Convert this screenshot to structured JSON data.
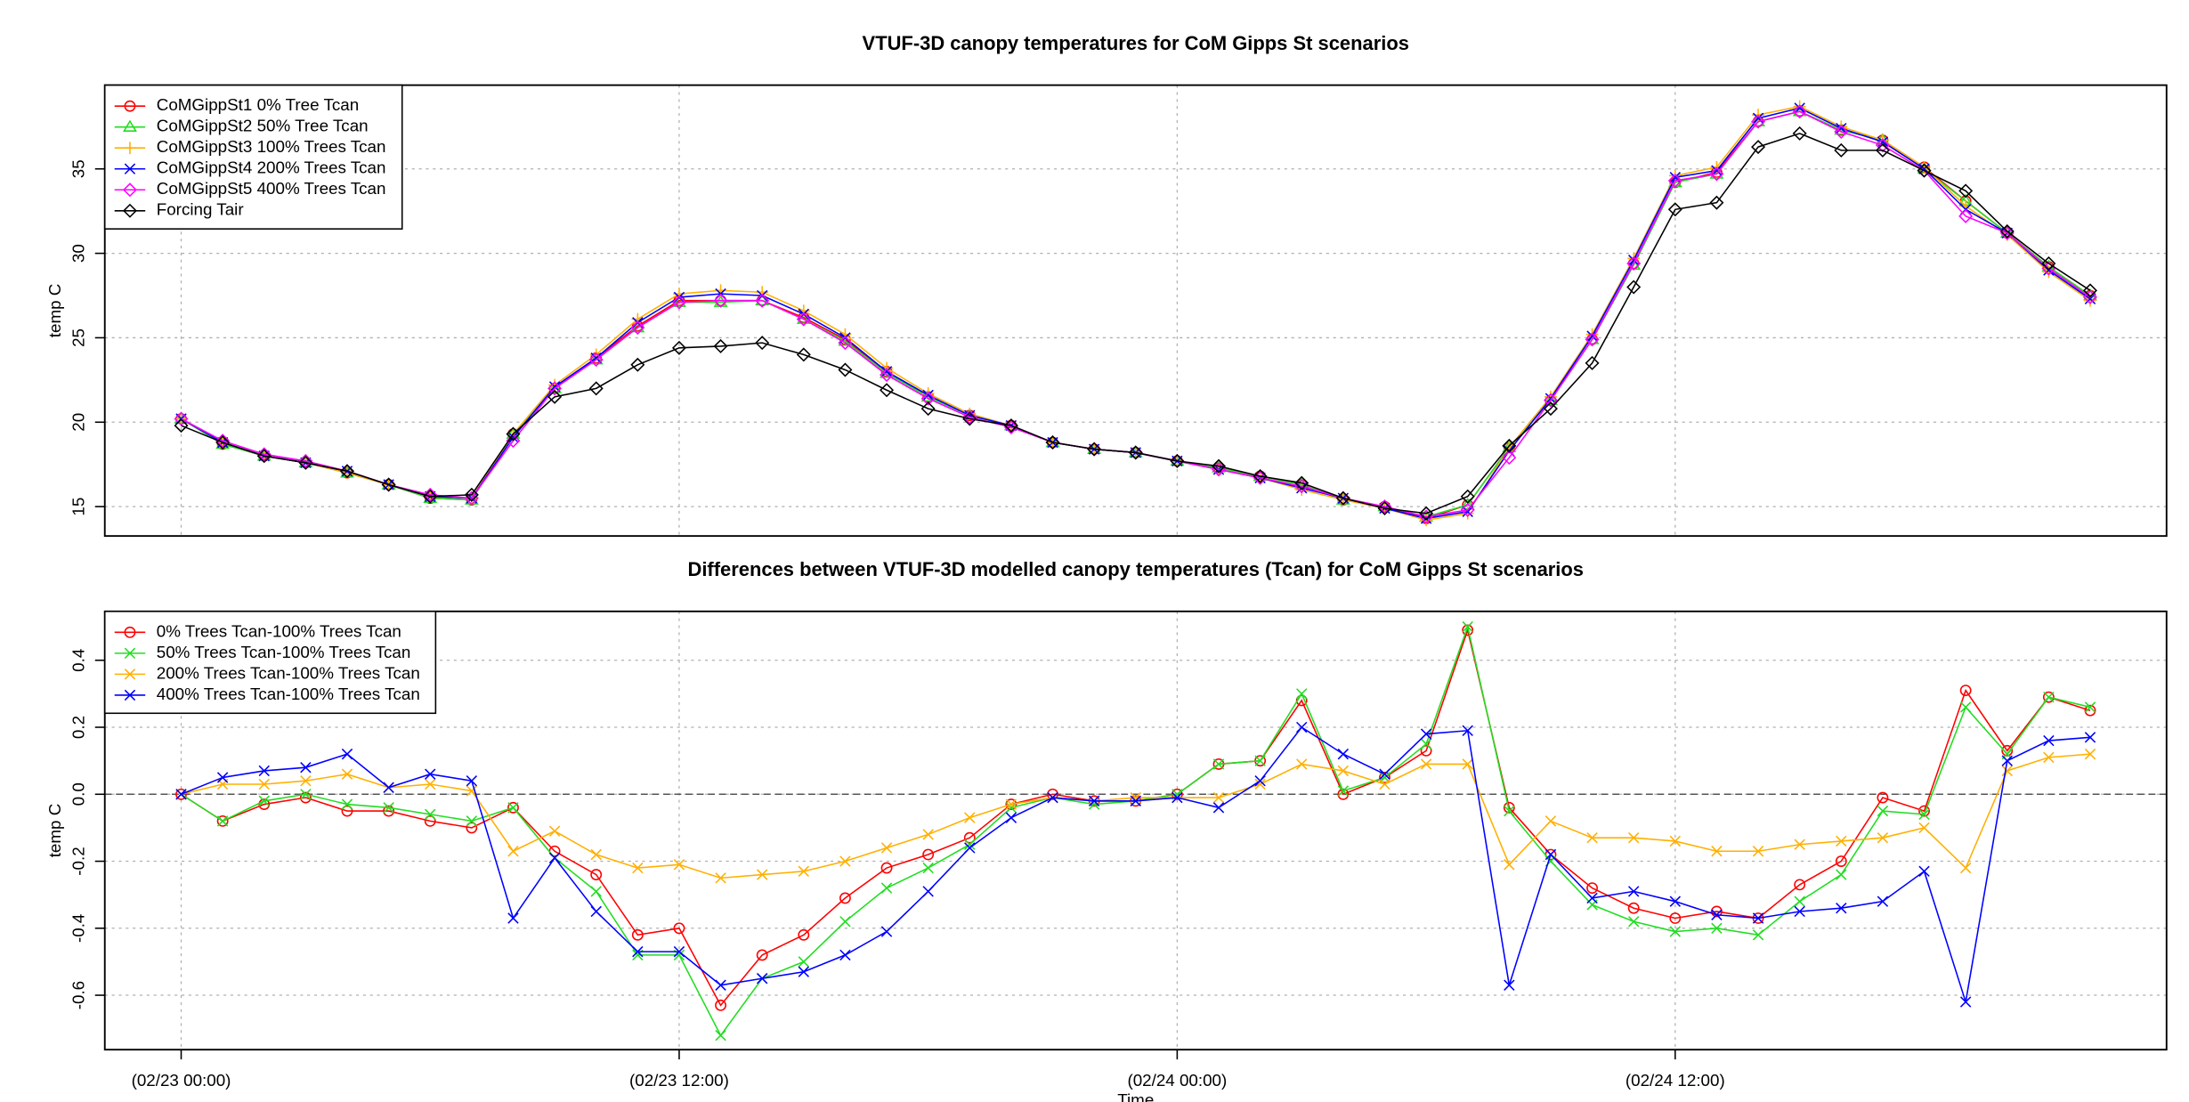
{
  "chart_data": [
    {
      "type": "line",
      "title": "VTUF-3D canopy temperatures for CoM Gipps St scenarios",
      "ylabel": "temp C",
      "x": [
        "02/23 00:00",
        "02/23 01:00",
        "02/23 02:00",
        "02/23 03:00",
        "02/23 04:00",
        "02/23 05:00",
        "02/23 06:00",
        "02/23 07:00",
        "02/23 08:00",
        "02/23 09:00",
        "02/23 10:00",
        "02/23 11:00",
        "02/23 12:00",
        "02/23 13:00",
        "02/23 14:00",
        "02/23 15:00",
        "02/23 16:00",
        "02/23 17:00",
        "02/23 18:00",
        "02/23 19:00",
        "02/23 20:00",
        "02/23 21:00",
        "02/23 22:00",
        "02/23 23:00",
        "02/24 00:00",
        "02/24 01:00",
        "02/24 02:00",
        "02/24 03:00",
        "02/24 04:00",
        "02/24 05:00",
        "02/24 06:00",
        "02/24 07:00",
        "02/24 08:00",
        "02/24 09:00",
        "02/24 10:00",
        "02/24 11:00",
        "02/24 12:00",
        "02/24 13:00",
        "02/24 14:00",
        "02/24 15:00",
        "02/24 16:00",
        "02/24 17:00",
        "02/24 18:00",
        "02/24 19:00",
        "02/24 20:00",
        "02/24 21:00",
        "02/24 22:00"
      ],
      "xticks": [
        "02/23 00:00",
        "02/23 12:00",
        "02/24 00:00",
        "02/24 12:00"
      ],
      "ylim": [
        13.26,
        39.96
      ],
      "yticks": [
        15,
        20,
        25,
        30,
        35
      ],
      "grid": true,
      "legend": "top-left",
      "series": [
        {
          "name": "CoMGippSt1 0% Tree Tcan",
          "color": "#ff0000",
          "marker": "circle",
          "values": [
            20.2,
            18.7,
            18.0,
            17.6,
            17.0,
            16.3,
            15.5,
            15.4,
            19.3,
            22.0,
            23.8,
            25.7,
            27.2,
            27.2,
            27.2,
            26.2,
            24.9,
            23.0,
            21.5,
            20.4,
            19.8,
            18.8,
            18.4,
            18.2,
            17.7,
            17.3,
            16.8,
            16.3,
            15.4,
            15.0,
            14.3,
            15.1,
            18.5,
            21.3,
            24.9,
            29.4,
            34.2,
            34.8,
            37.8,
            38.4,
            37.3,
            36.7,
            35.1,
            33.1,
            31.2,
            29.2,
            27.5
          ]
        },
        {
          "name": "CoMGippSt2 50% Tree Tcan",
          "color": "#22dd22",
          "marker": "triangle",
          "values": [
            20.2,
            18.7,
            18.0,
            17.6,
            17.0,
            16.3,
            15.5,
            15.4,
            19.3,
            22.0,
            23.7,
            25.6,
            27.1,
            27.1,
            27.2,
            26.1,
            24.8,
            22.9,
            21.5,
            20.4,
            19.8,
            18.8,
            18.4,
            18.2,
            17.7,
            17.3,
            16.8,
            16.3,
            15.4,
            15.0,
            14.4,
            15.1,
            18.5,
            21.3,
            24.9,
            29.3,
            34.2,
            34.7,
            37.8,
            38.4,
            37.3,
            36.7,
            35.0,
            33.1,
            31.2,
            29.2,
            27.5
          ]
        },
        {
          "name": "CoMGippSt3 100% Trees Tcan",
          "color": "#ffb000",
          "marker": "plus",
          "values": [
            20.2,
            18.8,
            18.0,
            17.6,
            17.0,
            16.3,
            15.6,
            15.5,
            19.3,
            22.2,
            24.0,
            26.1,
            27.6,
            27.8,
            27.7,
            26.6,
            25.2,
            23.2,
            21.7,
            20.5,
            19.8,
            18.8,
            18.4,
            18.2,
            17.7,
            17.2,
            16.7,
            16.0,
            15.4,
            14.9,
            14.2,
            14.6,
            18.5,
            21.5,
            25.2,
            29.7,
            34.6,
            35.1,
            38.2,
            38.7,
            37.5,
            36.7,
            35.1,
            32.8,
            31.1,
            28.9,
            27.2
          ]
        },
        {
          "name": "CoMGippSt4 200% Trees Tcan",
          "color": "#0000ff",
          "marker": "x",
          "values": [
            20.2,
            18.8,
            18.0,
            17.6,
            17.1,
            16.3,
            15.6,
            15.5,
            19.1,
            22.1,
            23.8,
            25.9,
            27.4,
            27.6,
            27.5,
            26.4,
            25.0,
            23.0,
            21.6,
            20.4,
            19.8,
            18.8,
            18.4,
            18.2,
            17.7,
            17.2,
            16.7,
            16.1,
            15.5,
            14.9,
            14.3,
            14.7,
            18.3,
            21.4,
            25.1,
            29.6,
            34.5,
            34.9,
            38.0,
            38.6,
            37.4,
            36.6,
            35.0,
            32.6,
            31.2,
            29.0,
            27.3
          ]
        },
        {
          "name": "CoMGippSt5 400% Trees Tcan",
          "color": "#ff00ff",
          "marker": "diamond",
          "values": [
            20.2,
            18.9,
            18.1,
            17.7,
            17.1,
            16.3,
            15.7,
            15.5,
            18.9,
            22.0,
            23.7,
            25.6,
            27.1,
            27.2,
            27.2,
            26.1,
            24.7,
            22.8,
            21.4,
            20.3,
            19.7,
            18.8,
            18.4,
            18.2,
            17.7,
            17.2,
            16.7,
            16.2,
            15.5,
            15.0,
            14.4,
            14.8,
            17.9,
            21.3,
            24.9,
            29.4,
            34.3,
            34.7,
            37.8,
            38.4,
            37.2,
            36.4,
            34.9,
            32.2,
            31.2,
            29.1,
            27.4
          ]
        },
        {
          "name": "Forcing Tair",
          "color": "#000000",
          "marker": "diamond",
          "values": [
            19.8,
            18.8,
            18.0,
            17.6,
            17.1,
            16.3,
            15.6,
            15.7,
            19.3,
            21.5,
            22.0,
            23.4,
            24.4,
            24.5,
            24.7,
            24.0,
            23.1,
            21.9,
            20.8,
            20.2,
            19.8,
            18.8,
            18.4,
            18.2,
            17.7,
            17.4,
            16.8,
            16.4,
            15.5,
            14.9,
            14.6,
            15.6,
            18.6,
            20.8,
            23.5,
            28.0,
            32.6,
            33.0,
            36.3,
            37.1,
            36.1,
            36.1,
            34.9,
            33.7,
            31.3,
            29.4,
            27.8
          ]
        }
      ]
    },
    {
      "type": "line",
      "title": "Differences between VTUF-3D modelled canopy temperatures (Tcan) for CoM Gipps St scenarios",
      "ylabel": "temp C",
      "xlabel": "Time",
      "x": [
        "02/23 00:00",
        "02/23 01:00",
        "02/23 02:00",
        "02/23 03:00",
        "02/23 04:00",
        "02/23 05:00",
        "02/23 06:00",
        "02/23 07:00",
        "02/23 08:00",
        "02/23 09:00",
        "02/23 10:00",
        "02/23 11:00",
        "02/23 12:00",
        "02/23 13:00",
        "02/23 14:00",
        "02/23 15:00",
        "02/23 16:00",
        "02/23 17:00",
        "02/23 18:00",
        "02/23 19:00",
        "02/23 20:00",
        "02/23 21:00",
        "02/23 22:00",
        "02/23 23:00",
        "02/24 00:00",
        "02/24 01:00",
        "02/24 02:00",
        "02/24 03:00",
        "02/24 04:00",
        "02/24 05:00",
        "02/24 06:00",
        "02/24 07:00",
        "02/24 08:00",
        "02/24 09:00",
        "02/24 10:00",
        "02/24 11:00",
        "02/24 12:00",
        "02/24 13:00",
        "02/24 14:00",
        "02/24 15:00",
        "02/24 16:00",
        "02/24 17:00",
        "02/24 18:00",
        "02/24 19:00",
        "02/24 20:00",
        "02/24 21:00",
        "02/24 22:00"
      ],
      "xticks": [
        {
          "value": "02/23 00:00",
          "label": "(02/23 00:00)"
        },
        {
          "value": "02/23 12:00",
          "label": "(02/23 12:00)"
        },
        {
          "value": "02/24 00:00",
          "label": "(02/24 00:00)"
        },
        {
          "value": "02/24 12:00",
          "label": "(02/24 12:00)"
        }
      ],
      "ylim": [
        -0.7625,
        0.546
      ],
      "yticks": [
        -0.6,
        -0.4,
        -0.2,
        {
          "value": 0,
          "label": "0.0"
        },
        0.2,
        0.4
      ],
      "hline": 0,
      "grid": true,
      "legend": "top-left",
      "series": [
        {
          "name": "0% Trees Tcan-100% Trees Tcan",
          "color": "#ff0000",
          "marker": "circle",
          "values": [
            0.0,
            -0.08,
            -0.03,
            -0.01,
            -0.05,
            -0.05,
            -0.08,
            -0.1,
            -0.04,
            -0.17,
            -0.24,
            -0.42,
            -0.4,
            -0.63,
            -0.48,
            -0.42,
            -0.31,
            -0.22,
            -0.18,
            -0.13,
            -0.03,
            0.0,
            -0.02,
            -0.02,
            0.0,
            0.09,
            0.1,
            0.28,
            0.0,
            0.05,
            0.13,
            0.49,
            -0.04,
            -0.18,
            -0.28,
            -0.34,
            -0.37,
            -0.35,
            -0.37,
            -0.27,
            -0.2,
            -0.01,
            -0.05,
            0.31,
            0.13,
            0.29,
            0.25
          ]
        },
        {
          "name": "50% Trees Tcan-100% Trees Tcan",
          "color": "#22dd22",
          "marker": "x",
          "values": [
            0.0,
            -0.08,
            -0.02,
            0.0,
            -0.03,
            -0.04,
            -0.06,
            -0.08,
            -0.04,
            -0.19,
            -0.29,
            -0.48,
            -0.48,
            -0.72,
            -0.55,
            -0.5,
            -0.38,
            -0.28,
            -0.22,
            -0.15,
            -0.04,
            -0.01,
            -0.03,
            -0.02,
            0.0,
            0.09,
            0.1,
            0.3,
            0.01,
            0.05,
            0.15,
            0.5,
            -0.05,
            -0.2,
            -0.33,
            -0.38,
            -0.41,
            -0.4,
            -0.42,
            -0.32,
            -0.24,
            -0.05,
            -0.06,
            0.26,
            0.12,
            0.29,
            0.26
          ]
        },
        {
          "name": "200% Trees Tcan-100% Trees Tcan",
          "color": "#ffb000",
          "marker": "x",
          "values": [
            0.0,
            0.03,
            0.03,
            0.04,
            0.06,
            0.02,
            0.03,
            0.01,
            -0.17,
            -0.11,
            -0.18,
            -0.22,
            -0.21,
            -0.25,
            -0.24,
            -0.23,
            -0.2,
            -0.16,
            -0.12,
            -0.07,
            -0.03,
            -0.01,
            -0.02,
            -0.01,
            -0.01,
            -0.01,
            0.03,
            0.09,
            0.07,
            0.03,
            0.09,
            0.09,
            -0.21,
            -0.08,
            -0.13,
            -0.13,
            -0.14,
            -0.17,
            -0.17,
            -0.15,
            -0.14,
            -0.13,
            -0.1,
            -0.22,
            0.07,
            0.11,
            0.12
          ]
        },
        {
          "name": "400% Trees Tcan-100% Trees Tcan",
          "color": "#0000ff",
          "marker": "x",
          "values": [
            0.0,
            0.05,
            0.07,
            0.08,
            0.12,
            0.02,
            0.06,
            0.04,
            -0.37,
            -0.19,
            -0.35,
            -0.47,
            -0.47,
            -0.57,
            -0.55,
            -0.53,
            -0.48,
            -0.41,
            -0.29,
            -0.16,
            -0.07,
            -0.01,
            -0.02,
            -0.02,
            -0.01,
            -0.04,
            0.04,
            0.2,
            0.12,
            0.06,
            0.18,
            0.19,
            -0.57,
            -0.18,
            -0.31,
            -0.29,
            -0.32,
            -0.36,
            -0.37,
            -0.35,
            -0.34,
            -0.32,
            -0.23,
            -0.62,
            0.1,
            0.16,
            0.17
          ]
        }
      ]
    }
  ]
}
